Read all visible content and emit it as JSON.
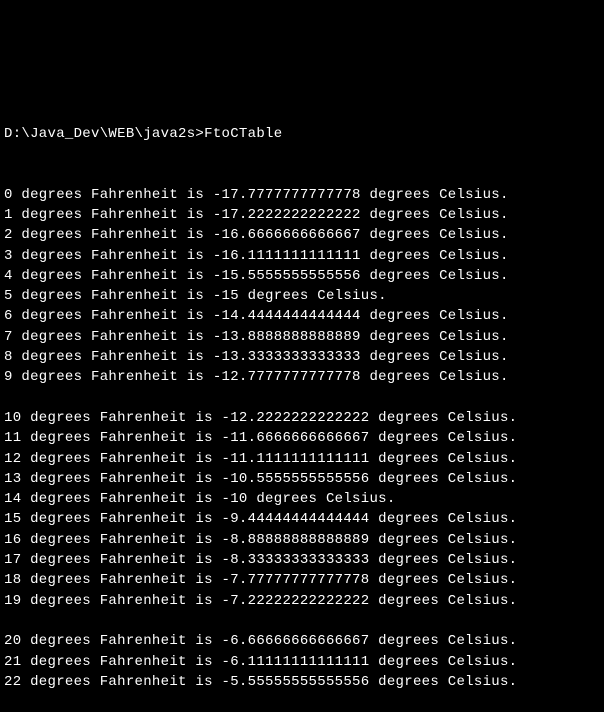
{
  "terminal": {
    "background_color": "#000000",
    "text_color": "#ffffff",
    "font_family": "Consolas, Courier New, monospace",
    "font_size": 14,
    "prompt": "D:\\Java_Dev\\WEB\\java2s>FtoCTable",
    "groups": [
      {
        "lines": [
          "0 degrees Fahrenheit is -17.7777777777778 degrees Celsius.",
          "1 degrees Fahrenheit is -17.2222222222222 degrees Celsius.",
          "2 degrees Fahrenheit is -16.6666666666667 degrees Celsius.",
          "3 degrees Fahrenheit is -16.1111111111111 degrees Celsius.",
          "4 degrees Fahrenheit is -15.5555555555556 degrees Celsius.",
          "5 degrees Fahrenheit is -15 degrees Celsius.",
          "6 degrees Fahrenheit is -14.4444444444444 degrees Celsius.",
          "7 degrees Fahrenheit is -13.8888888888889 degrees Celsius.",
          "8 degrees Fahrenheit is -13.3333333333333 degrees Celsius.",
          "9 degrees Fahrenheit is -12.7777777777778 degrees Celsius."
        ]
      },
      {
        "lines": [
          "10 degrees Fahrenheit is -12.2222222222222 degrees Celsius.",
          "11 degrees Fahrenheit is -11.6666666666667 degrees Celsius.",
          "12 degrees Fahrenheit is -11.1111111111111 degrees Celsius.",
          "13 degrees Fahrenheit is -10.5555555555556 degrees Celsius.",
          "14 degrees Fahrenheit is -10 degrees Celsius.",
          "15 degrees Fahrenheit is -9.44444444444444 degrees Celsius.",
          "16 degrees Fahrenheit is -8.88888888888889 degrees Celsius.",
          "17 degrees Fahrenheit is -8.33333333333333 degrees Celsius.",
          "18 degrees Fahrenheit is -7.77777777777778 degrees Celsius.",
          "19 degrees Fahrenheit is -7.22222222222222 degrees Celsius."
        ]
      },
      {
        "lines": [
          "20 degrees Fahrenheit is -6.66666666666667 degrees Celsius.",
          "21 degrees Fahrenheit is -6.11111111111111 degrees Celsius.",
          "22 degrees Fahrenheit is -5.55555555555556 degrees Celsius."
        ]
      }
    ]
  }
}
